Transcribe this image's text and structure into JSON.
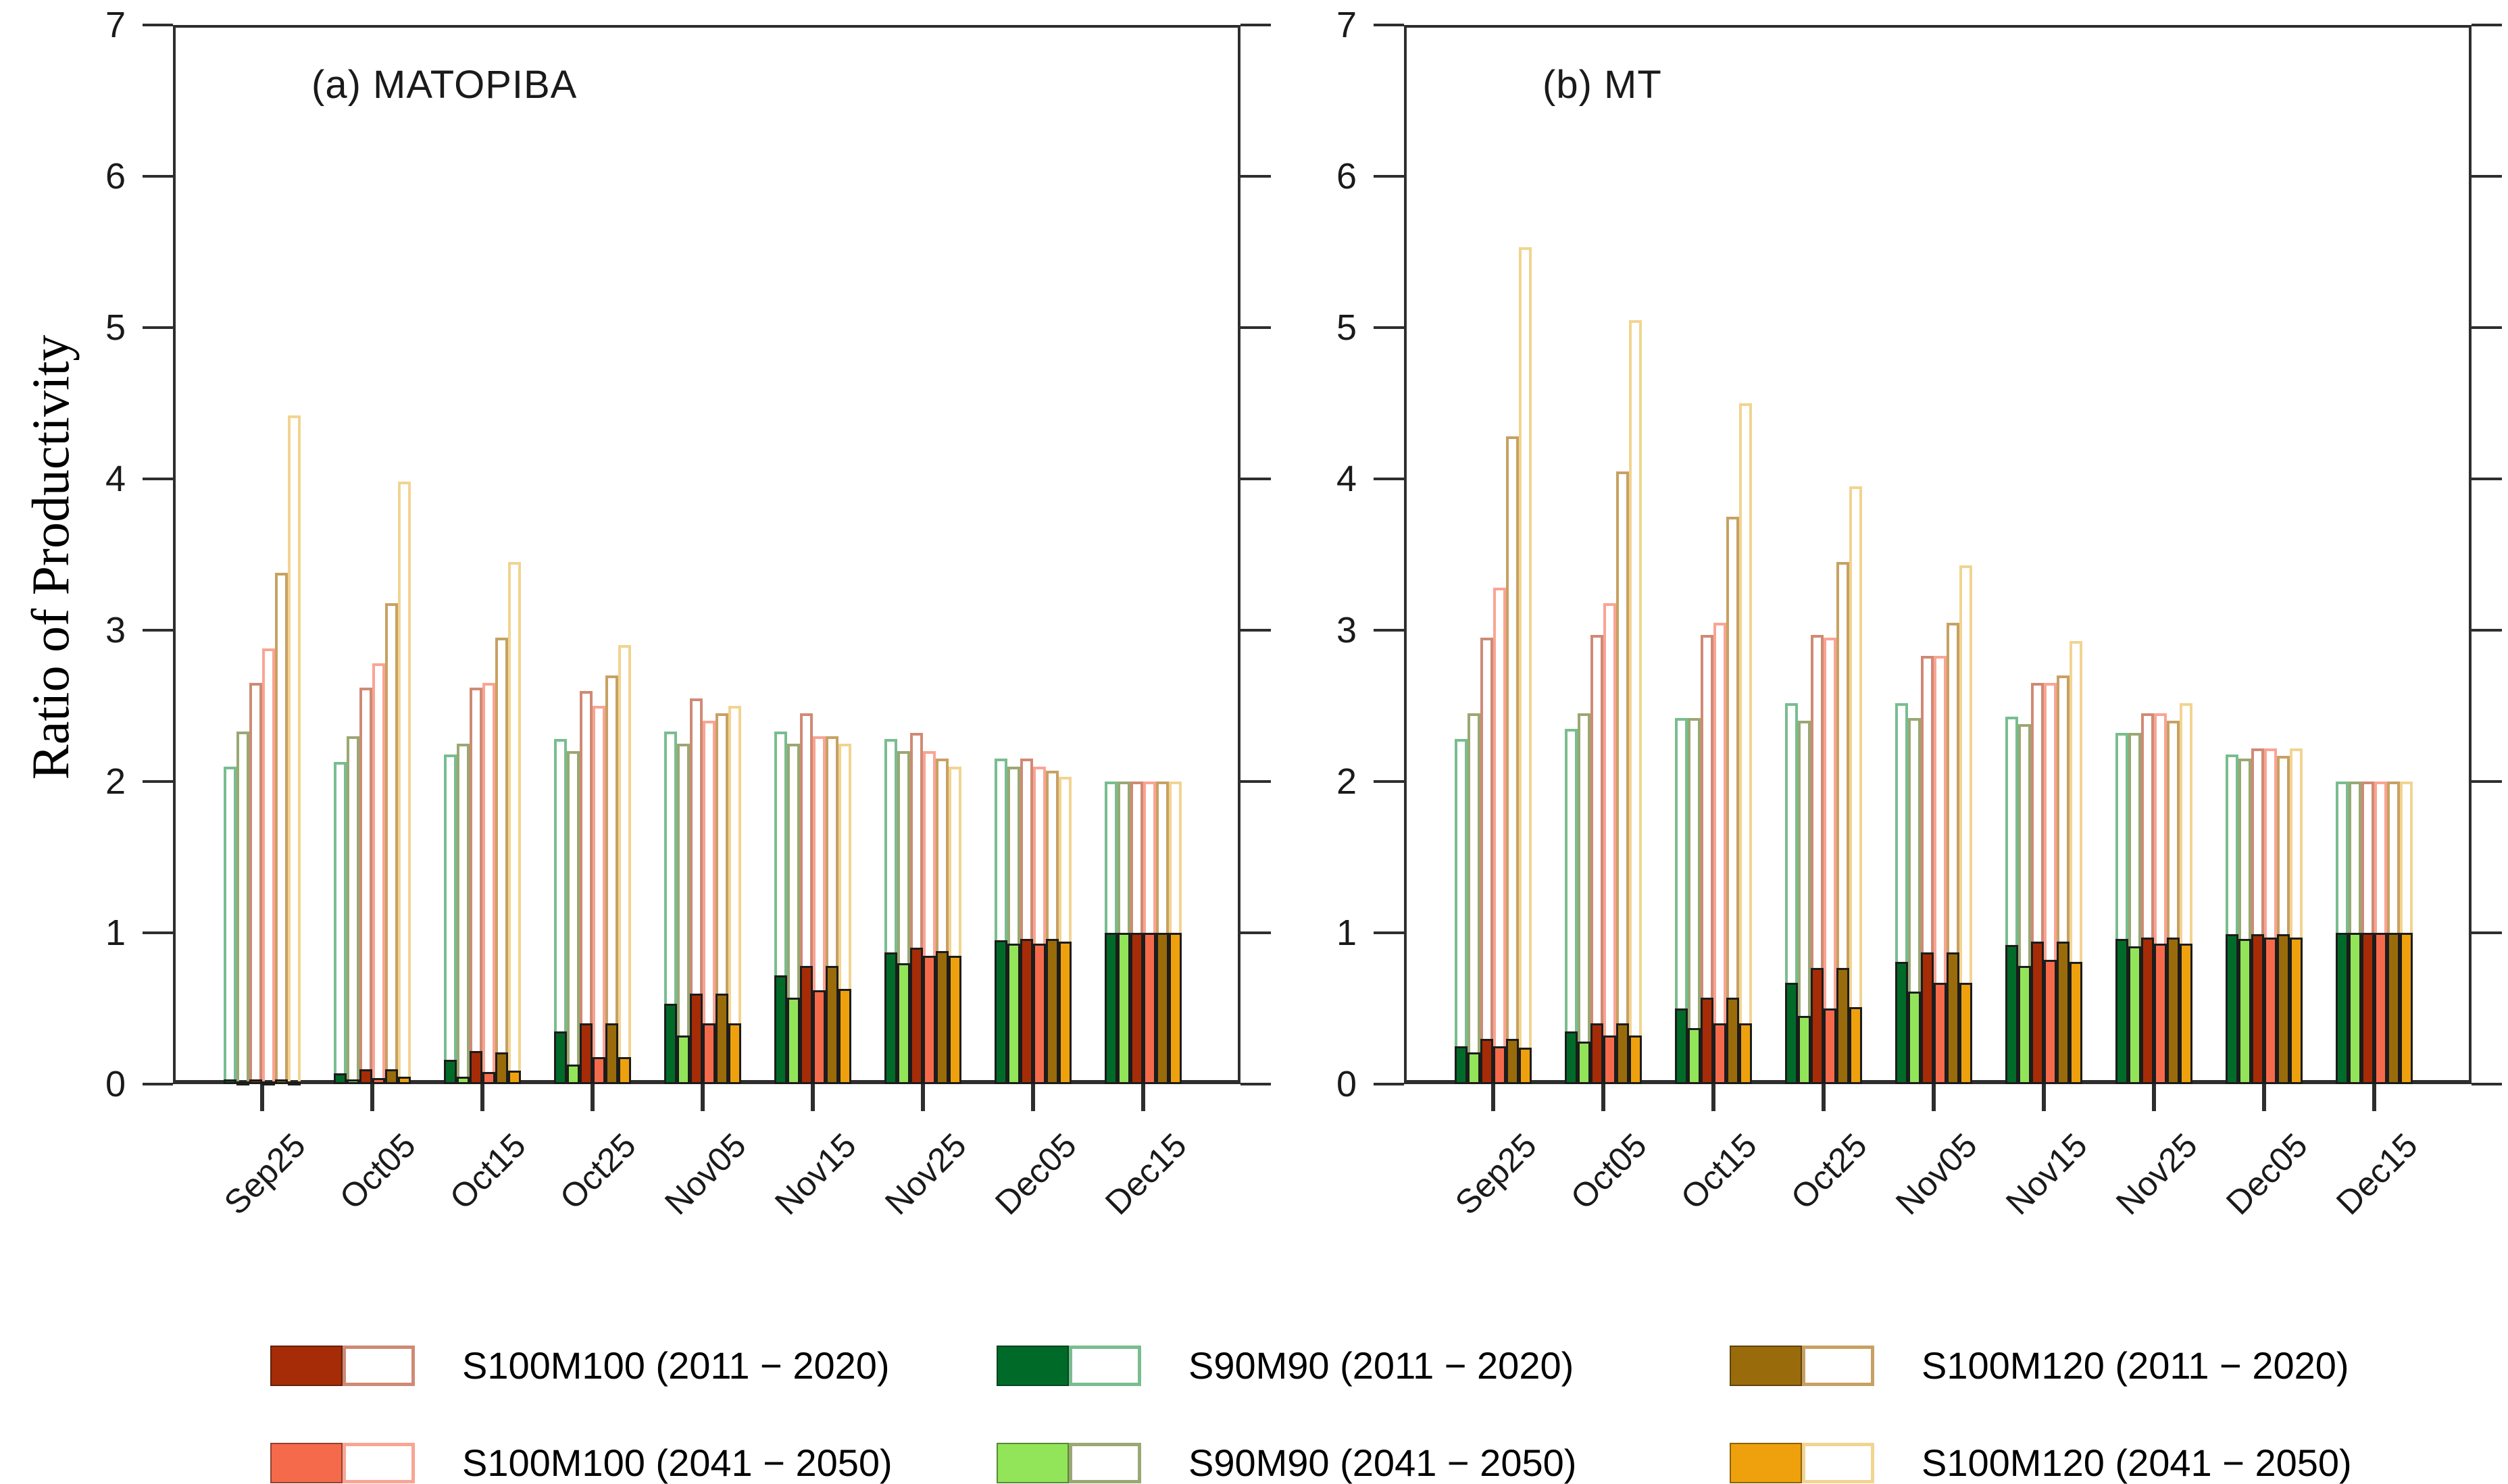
{
  "figure": {
    "ylabel": "Ratio of Productivity",
    "background_color": "#ffffff",
    "axis_color": "#2e2e2e",
    "text_color": "#111111"
  },
  "palette": {
    "S90M90_2011": {
      "fill": "#006b28",
      "outline": "#79bd8f"
    },
    "S90M90_2041": {
      "fill": "#92e558",
      "outline": "#9aa873"
    },
    "S100M100_2011": {
      "fill": "#a52c06",
      "outline": "#cf8a74"
    },
    "S100M100_2041": {
      "fill": "#f56a4b",
      "outline": "#faa493"
    },
    "S100M120_2011": {
      "fill": "#9a6b0b",
      "outline": "#c7a163"
    },
    "S100M120_2041": {
      "fill": "#eea10d",
      "outline": "#f2d491"
    }
  },
  "chart_data": [
    {
      "type": "bar",
      "title": "(a) MATOPIBA",
      "ylabel": "Ratio of Productivity",
      "xlabel": "",
      "ylim": [
        0,
        7
      ],
      "yticks": [
        0,
        1,
        2,
        3,
        4,
        5,
        6,
        7
      ],
      "grid": false,
      "legend_position": "bottom",
      "bar_style_note": "each bar shows a solid filled value plus a taller hollow outlined value",
      "categories": [
        "Sep25",
        "Oct05",
        "Oct15",
        "Oct25",
        "Nov05",
        "Nov15",
        "Nov25",
        "Dec05",
        "Dec15"
      ],
      "series": [
        {
          "id": "S90M90_2011",
          "name": "S90M90 (2011 − 2020)",
          "hollow": [
            2.1,
            2.13,
            2.18,
            2.28,
            2.33,
            2.33,
            2.28,
            2.15,
            2.0
          ],
          "filled": [
            0.03,
            0.07,
            0.16,
            0.35,
            0.53,
            0.72,
            0.87,
            0.95,
            1.0
          ]
        },
        {
          "id": "S90M90_2041",
          "name": "S90M90 (2041 − 2050)",
          "hollow": [
            2.33,
            2.3,
            2.25,
            2.2,
            2.25,
            2.25,
            2.2,
            2.1,
            2.0
          ],
          "filled": [
            0.02,
            0.03,
            0.05,
            0.13,
            0.32,
            0.57,
            0.8,
            0.93,
            1.0
          ]
        },
        {
          "id": "S100M100_2011",
          "name": "S100M100 (2011 − 2020)",
          "hollow": [
            2.65,
            2.62,
            2.62,
            2.6,
            2.55,
            2.45,
            2.32,
            2.15,
            2.0
          ],
          "filled": [
            0.03,
            0.1,
            0.22,
            0.4,
            0.6,
            0.78,
            0.9,
            0.96,
            1.0
          ]
        },
        {
          "id": "S100M100_2041",
          "name": "S100M100 (2041 − 2050)",
          "hollow": [
            2.88,
            2.78,
            2.65,
            2.5,
            2.4,
            2.3,
            2.2,
            2.1,
            2.0
          ],
          "filled": [
            0.02,
            0.04,
            0.08,
            0.18,
            0.4,
            0.62,
            0.85,
            0.93,
            1.0
          ]
        },
        {
          "id": "S100M120_2011",
          "name": "S100M120 (2011 − 2020)",
          "hollow": [
            3.38,
            3.18,
            2.95,
            2.7,
            2.45,
            2.3,
            2.15,
            2.07,
            2.0
          ],
          "filled": [
            0.03,
            0.1,
            0.21,
            0.4,
            0.6,
            0.78,
            0.88,
            0.96,
            1.0
          ]
        },
        {
          "id": "S100M120_2041",
          "name": "S100M120 (2041 − 2050)",
          "hollow": [
            4.42,
            3.98,
            3.45,
            2.9,
            2.5,
            2.25,
            2.1,
            2.03,
            2.0
          ],
          "filled": [
            0.02,
            0.05,
            0.09,
            0.18,
            0.4,
            0.63,
            0.85,
            0.94,
            1.0
          ]
        }
      ]
    },
    {
      "type": "bar",
      "title": "(b) MT",
      "ylabel": "Ratio of Productivity",
      "xlabel": "",
      "ylim": [
        0,
        7
      ],
      "yticks": [
        0,
        1,
        2,
        3,
        4,
        5,
        6,
        7
      ],
      "grid": false,
      "legend_position": "bottom",
      "bar_style_note": "each bar shows a solid filled value plus a taller hollow outlined value",
      "categories": [
        "Sep25",
        "Oct05",
        "Oct15",
        "Oct25",
        "Nov05",
        "Nov15",
        "Nov25",
        "Dec05",
        "Dec15"
      ],
      "series": [
        {
          "id": "S90M90_2011",
          "name": "S90M90 (2011 − 2020)",
          "hollow": [
            2.28,
            2.35,
            2.42,
            2.52,
            2.52,
            2.43,
            2.32,
            2.18,
            2.0
          ],
          "filled": [
            0.25,
            0.35,
            0.5,
            0.67,
            0.81,
            0.92,
            0.96,
            0.99,
            1.0
          ]
        },
        {
          "id": "S90M90_2041",
          "name": "S90M90 (2041 − 2050)",
          "hollow": [
            2.45,
            2.45,
            2.42,
            2.4,
            2.42,
            2.38,
            2.32,
            2.15,
            2.0
          ],
          "filled": [
            0.21,
            0.28,
            0.37,
            0.45,
            0.61,
            0.78,
            0.91,
            0.96,
            1.0
          ]
        },
        {
          "id": "S100M100_2011",
          "name": "S100M100 (2011 − 2020)",
          "hollow": [
            2.95,
            2.97,
            2.97,
            2.97,
            2.83,
            2.65,
            2.45,
            2.22,
            2.0
          ],
          "filled": [
            0.3,
            0.4,
            0.57,
            0.77,
            0.87,
            0.94,
            0.97,
            0.99,
            1.0
          ]
        },
        {
          "id": "S100M100_2041",
          "name": "S100M100 (2041 − 2050)",
          "hollow": [
            3.28,
            3.18,
            3.05,
            2.95,
            2.83,
            2.65,
            2.45,
            2.22,
            2.0
          ],
          "filled": [
            0.25,
            0.32,
            0.4,
            0.5,
            0.67,
            0.82,
            0.93,
            0.97,
            1.0
          ]
        },
        {
          "id": "S100M120_2011",
          "name": "S100M120 (2011 − 2020)",
          "hollow": [
            4.28,
            4.05,
            3.75,
            3.45,
            3.05,
            2.7,
            2.4,
            2.17,
            2.0
          ],
          "filled": [
            0.3,
            0.4,
            0.57,
            0.77,
            0.87,
            0.94,
            0.97,
            0.99,
            1.0
          ]
        },
        {
          "id": "S100M120_2041",
          "name": "S100M120 (2041 − 2050)",
          "hollow": [
            5.53,
            5.05,
            4.5,
            3.95,
            3.43,
            2.93,
            2.52,
            2.22,
            2.0
          ],
          "filled": [
            0.24,
            0.32,
            0.4,
            0.51,
            0.67,
            0.81,
            0.93,
            0.97,
            1.0
          ]
        }
      ]
    }
  ],
  "legend": {
    "columns": [
      [
        {
          "series": "S100M100_2011",
          "label": "S100M100 (2011 − 2020)"
        },
        {
          "series": "S100M100_2041",
          "label": "S100M100 (2041 − 2050)"
        }
      ],
      [
        {
          "series": "S90M90_2011",
          "label": "S90M90 (2011 − 2020)"
        },
        {
          "series": "S90M90_2041",
          "label": "S90M90 (2041 − 2050)"
        }
      ],
      [
        {
          "series": "S100M120_2011",
          "label": "S100M120 (2011 − 2020)"
        },
        {
          "series": "S100M120_2041",
          "label": "S100M120 (2041 − 2050)"
        }
      ]
    ]
  }
}
